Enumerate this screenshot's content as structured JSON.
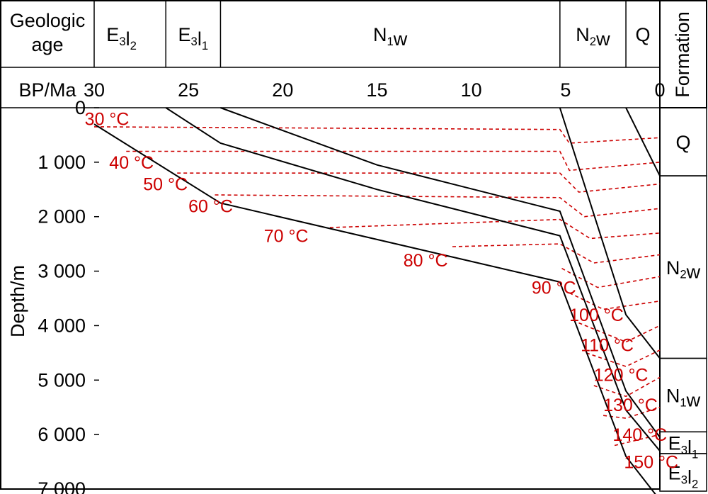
{
  "chart_data": {
    "type": "line",
    "title": "",
    "header": {
      "age_title": "Geologic\nage",
      "formation_title": "Formation",
      "time_axis_label": "BP/Ma"
    },
    "xlabel": "BP/Ma",
    "ylabel": "Depth/m",
    "xlim": [
      30,
      0
    ],
    "ylim": [
      0,
      7000
    ],
    "xticks": [
      30,
      25,
      20,
      15,
      10,
      5,
      0
    ],
    "xtick_labels": [
      "30",
      "25",
      "20",
      "15",
      "10",
      "5",
      "0"
    ],
    "yticks": [
      0,
      1000,
      2000,
      3000,
      4000,
      5000,
      6000,
      7000
    ],
    "ytick_labels": [
      "0",
      "1 000",
      "2 000",
      "3 000",
      "4 000",
      "5 000",
      "6 000",
      "7 000"
    ],
    "geologic_ages": [
      {
        "base": "E",
        "sub": "3",
        "suffix": "l",
        "sub2": "2",
        "from": 30.9,
        "to": 26.2
      },
      {
        "base": "E",
        "sub": "3",
        "suffix": "l",
        "sub2": "1",
        "from": 26.2,
        "to": 23.3
      },
      {
        "base": "N",
        "sub": "1",
        "suffix": "w",
        "sub2": "",
        "from": 23.3,
        "to": 5.3
      },
      {
        "base": "N",
        "sub": "2",
        "suffix": "w",
        "sub2": "",
        "from": 5.3,
        "to": 1.8
      },
      {
        "base": "Q",
        "sub": "",
        "suffix": "",
        "sub2": "",
        "from": 1.8,
        "to": 0
      }
    ],
    "formations": [
      {
        "base": "Q",
        "sub": "",
        "suffix": "",
        "sub2": "",
        "top": 0,
        "bottom": 1250
      },
      {
        "base": "N",
        "sub": "2",
        "suffix": "w",
        "sub2": "",
        "top": 1250,
        "bottom": 4600
      },
      {
        "base": "N",
        "sub": "1",
        "suffix": "w",
        "sub2": "",
        "top": 4600,
        "bottom": 5950
      },
      {
        "base": "E",
        "sub": "3",
        "suffix": "l",
        "sub2": "1",
        "top": 5950,
        "bottom": 6350
      },
      {
        "base": "E",
        "sub": "3",
        "suffix": "l",
        "sub2": "2",
        "top": 6350,
        "bottom": 7200
      }
    ],
    "burial_lines": [
      {
        "points": [
          [
            30.0,
            300
          ],
          [
            23.3,
            1750
          ],
          [
            5.3,
            3200
          ],
          [
            1.8,
            6400
          ],
          [
            0,
            7200
          ]
        ]
      },
      {
        "points": [
          [
            26.2,
            0
          ],
          [
            23.3,
            650
          ],
          [
            15.0,
            1500
          ],
          [
            5.3,
            2350
          ],
          [
            1.8,
            5550
          ],
          [
            0,
            6300
          ]
        ]
      },
      {
        "points": [
          [
            23.3,
            0
          ],
          [
            15.0,
            1050
          ],
          [
            5.3,
            1900
          ],
          [
            1.8,
            5200
          ],
          [
            0,
            6050
          ]
        ]
      },
      {
        "points": [
          [
            5.3,
            0
          ],
          [
            1.8,
            3800
          ],
          [
            0,
            4600
          ]
        ]
      },
      {
        "points": [
          [
            1.8,
            0
          ],
          [
            0,
            1250
          ]
        ]
      }
    ],
    "isotherms": [
      {
        "label": "30 °C",
        "label_at": [
          30.5,
          200
        ],
        "points": [
          [
            30.0,
            350
          ],
          [
            5.3,
            400
          ],
          [
            4.8,
            650
          ],
          [
            0,
            550
          ]
        ]
      },
      {
        "label": "40 °C",
        "label_at": [
          29.2,
          1000
        ],
        "points": [
          [
            28.3,
            800
          ],
          [
            5.3,
            800
          ],
          [
            4.8,
            1150
          ],
          [
            0,
            1000
          ]
        ]
      },
      {
        "label": "50 °C",
        "label_at": [
          27.4,
          1400
        ],
        "points": [
          [
            25.6,
            1200
          ],
          [
            5.3,
            1200
          ],
          [
            4.3,
            1550
          ],
          [
            0,
            1400
          ]
        ]
      },
      {
        "label": "60 °C",
        "label_at": [
          25.0,
          1800
        ],
        "points": [
          [
            23.6,
            1600
          ],
          [
            5.3,
            1650
          ],
          [
            4.0,
            2000
          ],
          [
            0,
            1850
          ]
        ]
      },
      {
        "label": "70 °C",
        "label_at": [
          21.0,
          2350
        ],
        "points": [
          [
            17.5,
            2200
          ],
          [
            5.3,
            2050
          ],
          [
            3.7,
            2400
          ],
          [
            0,
            2300
          ]
        ]
      },
      {
        "label": "80 °C",
        "label_at": [
          13.6,
          2800
        ],
        "points": [
          [
            11.0,
            2550
          ],
          [
            5.3,
            2500
          ],
          [
            3.5,
            2850
          ],
          [
            0,
            2700
          ]
        ]
      },
      {
        "label": "90 °C",
        "label_at": [
          6.8,
          3300
        ],
        "points": [
          [
            5.2,
            2950
          ],
          [
            3.3,
            3300
          ],
          [
            0,
            3100
          ]
        ]
      },
      {
        "label": "100 °C",
        "label_at": [
          4.8,
          3800
        ],
        "points": [
          [
            4.8,
            3400
          ],
          [
            3.0,
            3700
          ],
          [
            0,
            3550
          ]
        ]
      },
      {
        "label": "110 °C",
        "label_at": [
          4.2,
          4350
        ],
        "points": [
          [
            4.3,
            3950
          ],
          [
            1.8,
            4300
          ],
          [
            0,
            4000
          ]
        ]
      },
      {
        "label": "120 °C",
        "label_at": [
          3.5,
          4900
        ],
        "points": [
          [
            3.9,
            4500
          ],
          [
            1.8,
            4750
          ],
          [
            0,
            4450
          ]
        ]
      },
      {
        "label": "130 °C",
        "label_at": [
          3.0,
          5450
        ],
        "points": [
          [
            3.5,
            5100
          ],
          [
            1.8,
            5300
          ],
          [
            0,
            4950
          ]
        ]
      },
      {
        "label": "140 °C",
        "label_at": [
          2.5,
          6000
        ],
        "points": [
          [
            3.0,
            5650
          ],
          [
            1.8,
            5700
          ],
          [
            0,
            5500
          ]
        ]
      },
      {
        "label": "150 °C",
        "label_at": [
          1.9,
          6500
        ],
        "points": [
          [
            2.4,
            6200
          ],
          [
            1.8,
            6150
          ],
          [
            0,
            6000
          ]
        ]
      }
    ]
  }
}
